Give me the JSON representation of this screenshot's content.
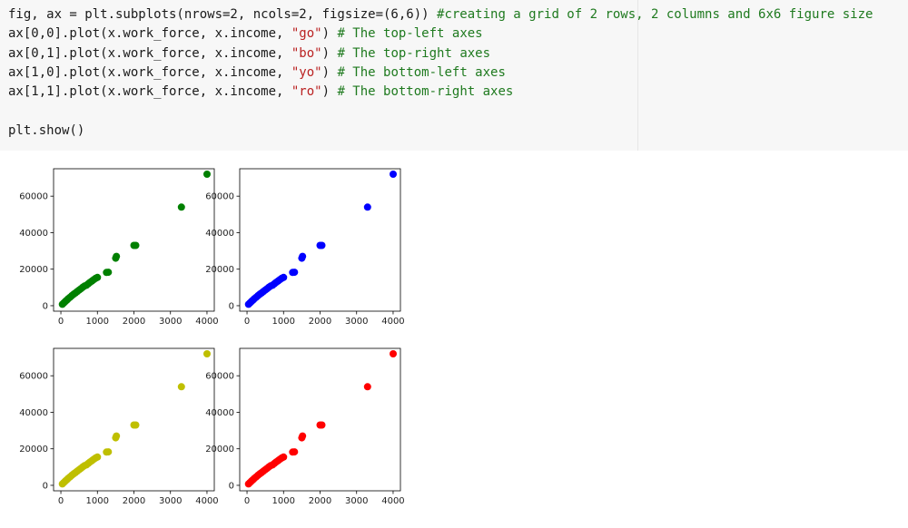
{
  "code_cell": {
    "lines": [
      {
        "parts": [
          {
            "t": "fig, ax = plt.subplots(nrows=2, ncols=2, figsize=(6,6)) ",
            "c": "plain"
          },
          {
            "t": "#creating a grid of 2 rows, 2 columns and 6x6 figure size",
            "c": "com"
          }
        ]
      },
      {
        "parts": [
          {
            "t": "ax[0,0].plot(x.work_force, x.income, ",
            "c": "plain"
          },
          {
            "t": "\"go\"",
            "c": "str"
          },
          {
            "t": ") ",
            "c": "plain"
          },
          {
            "t": "# The top-left axes",
            "c": "com"
          }
        ]
      },
      {
        "parts": [
          {
            "t": "ax[0,1].plot(x.work_force, x.income, ",
            "c": "plain"
          },
          {
            "t": "\"bo\"",
            "c": "str"
          },
          {
            "t": ") ",
            "c": "plain"
          },
          {
            "t": "# The top-right axes",
            "c": "com"
          }
        ]
      },
      {
        "parts": [
          {
            "t": "ax[1,0].plot(x.work_force, x.income, ",
            "c": "plain"
          },
          {
            "t": "\"yo\"",
            "c": "str"
          },
          {
            "t": ") ",
            "c": "plain"
          },
          {
            "t": "# The bottom-left axes",
            "c": "com"
          }
        ]
      },
      {
        "parts": [
          {
            "t": "ax[1,1].plot(x.work_force, x.income, ",
            "c": "plain"
          },
          {
            "t": "\"ro\"",
            "c": "str"
          },
          {
            "t": ") ",
            "c": "plain"
          },
          {
            "t": "# The bottom-right axes",
            "c": "com"
          }
        ]
      },
      {
        "parts": [
          {
            "t": "",
            "c": "plain"
          }
        ]
      },
      {
        "parts": [
          {
            "t": "plt.show()",
            "c": "plain"
          }
        ]
      }
    ]
  },
  "chart_data": [
    {
      "type": "scatter",
      "position": "top-left",
      "marker_color": "#008000",
      "xlim": [
        -200,
        4200
      ],
      "ylim": [
        -3000,
        75000
      ],
      "xticks": [
        0,
        1000,
        2000,
        3000,
        4000
      ],
      "yticks": [
        0,
        20000,
        40000,
        60000
      ],
      "series": [
        {
          "x": [
            40,
            80,
            120,
            160,
            200,
            250,
            300,
            350,
            400,
            450,
            500,
            550,
            600,
            650,
            700,
            750,
            800,
            850,
            900,
            950,
            1000,
            1250,
            1300,
            1500,
            1520,
            2000,
            2050,
            3300,
            4000
          ],
          "y": [
            800,
            1500,
            2300,
            3000,
            3800,
            4600,
            5500,
            6300,
            7000,
            7800,
            8600,
            9300,
            10100,
            10800,
            11200,
            12000,
            12800,
            13500,
            14300,
            15000,
            15500,
            18200,
            18300,
            26000,
            27000,
            33000,
            33000,
            54000,
            72000
          ]
        }
      ]
    },
    {
      "type": "scatter",
      "position": "top-right",
      "marker_color": "#0000ff",
      "xlim": [
        -200,
        4200
      ],
      "ylim": [
        -3000,
        75000
      ],
      "xticks": [
        0,
        1000,
        2000,
        3000,
        4000
      ],
      "yticks": [
        0,
        20000,
        40000,
        60000
      ],
      "series": [
        {
          "x": [
            40,
            80,
            120,
            160,
            200,
            250,
            300,
            350,
            400,
            450,
            500,
            550,
            600,
            650,
            700,
            750,
            800,
            850,
            900,
            950,
            1000,
            1250,
            1300,
            1500,
            1520,
            2000,
            2050,
            3300,
            4000
          ],
          "y": [
            800,
            1500,
            2300,
            3000,
            3800,
            4600,
            5500,
            6300,
            7000,
            7800,
            8600,
            9300,
            10100,
            10800,
            11200,
            12000,
            12800,
            13500,
            14300,
            15000,
            15500,
            18200,
            18300,
            26000,
            27000,
            33000,
            33000,
            54000,
            72000
          ]
        }
      ]
    },
    {
      "type": "scatter",
      "position": "bottom-left",
      "marker_color": "#bfbf00",
      "xlim": [
        -200,
        4200
      ],
      "ylim": [
        -3000,
        75000
      ],
      "xticks": [
        0,
        1000,
        2000,
        3000,
        4000
      ],
      "yticks": [
        0,
        20000,
        40000,
        60000
      ],
      "series": [
        {
          "x": [
            40,
            80,
            120,
            160,
            200,
            250,
            300,
            350,
            400,
            450,
            500,
            550,
            600,
            650,
            700,
            750,
            800,
            850,
            900,
            950,
            1000,
            1250,
            1300,
            1500,
            1520,
            2000,
            2050,
            3300,
            4000
          ],
          "y": [
            800,
            1500,
            2300,
            3000,
            3800,
            4600,
            5500,
            6300,
            7000,
            7800,
            8600,
            9300,
            10100,
            10800,
            11200,
            12000,
            12800,
            13500,
            14300,
            15000,
            15500,
            18200,
            18300,
            26000,
            27000,
            33000,
            33000,
            54000,
            72000
          ]
        }
      ]
    },
    {
      "type": "scatter",
      "position": "bottom-right",
      "marker_color": "#ff0000",
      "xlim": [
        -200,
        4200
      ],
      "ylim": [
        -3000,
        75000
      ],
      "xticks": [
        0,
        1000,
        2000,
        3000,
        4000
      ],
      "yticks": [
        0,
        20000,
        40000,
        60000
      ],
      "series": [
        {
          "x": [
            40,
            80,
            120,
            160,
            200,
            250,
            300,
            350,
            400,
            450,
            500,
            550,
            600,
            650,
            700,
            750,
            800,
            850,
            900,
            950,
            1000,
            1250,
            1300,
            1500,
            1520,
            2000,
            2050,
            3300,
            4000
          ],
          "y": [
            800,
            1500,
            2300,
            3000,
            3800,
            4600,
            5500,
            6300,
            7000,
            7800,
            8600,
            9300,
            10100,
            10800,
            11200,
            12000,
            12800,
            13500,
            14300,
            15000,
            15500,
            18200,
            18300,
            26000,
            27000,
            33000,
            33000,
            54000,
            72000
          ]
        }
      ]
    }
  ]
}
